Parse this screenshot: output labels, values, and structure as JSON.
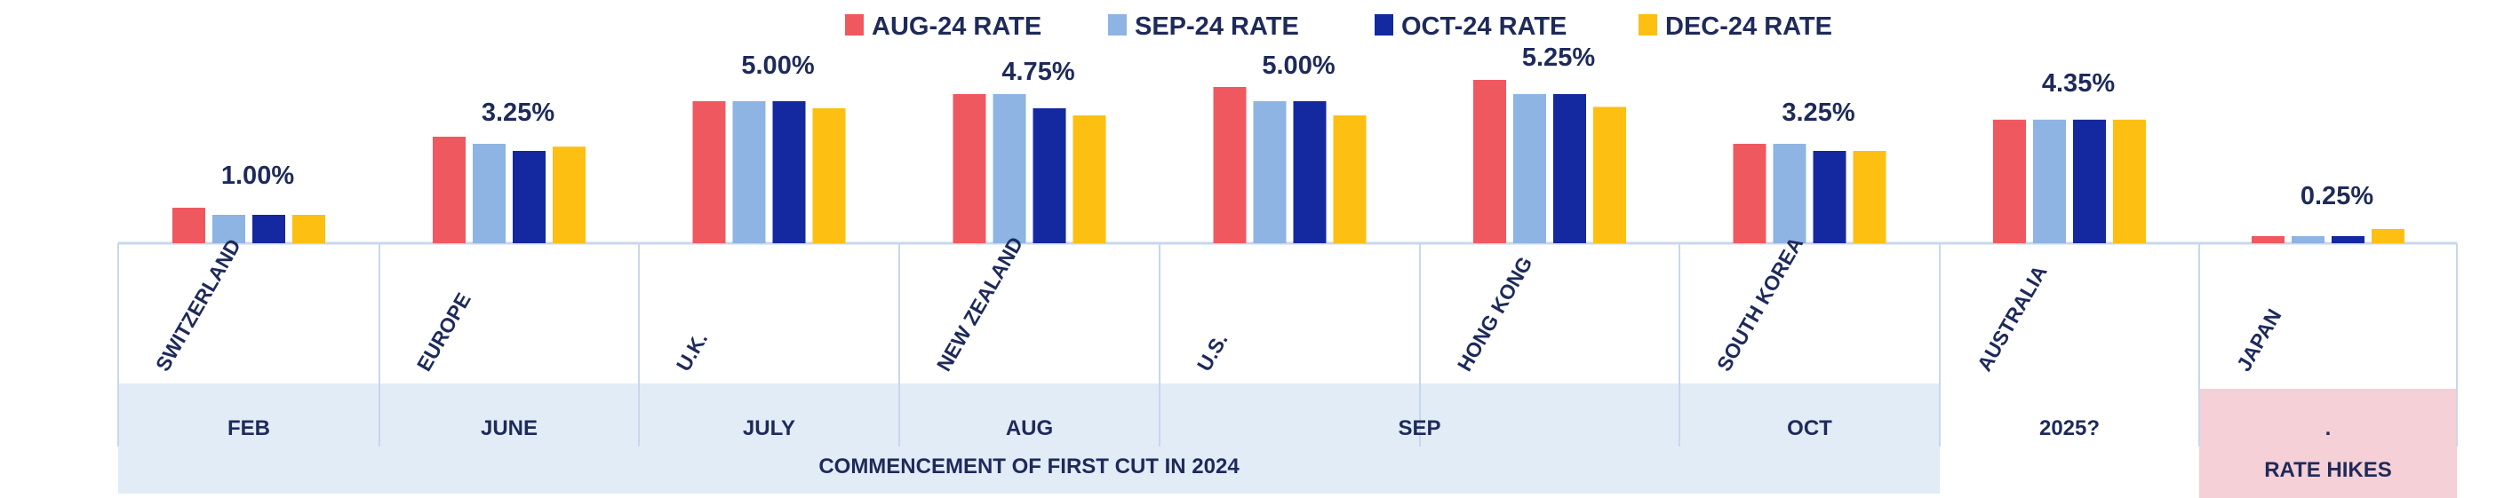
{
  "chart_data": {
    "type": "bar",
    "title": "",
    "xlabel": "",
    "ylabel": "",
    "legend_position": "top",
    "grid": false,
    "ylim": [
      0,
      6
    ],
    "categories": [
      "SWITZERLAND",
      "EUROPE",
      "U.K.",
      "NEW ZEALAND",
      "U.S.",
      "HONG KONG",
      "SOUTH KOREA",
      "AUSTRALIA",
      "JAPAN"
    ],
    "series": [
      {
        "name": "AUG-24 RATE",
        "color": "#f0585f",
        "values": [
          1.25,
          3.75,
          5.0,
          5.25,
          5.5,
          5.75,
          3.5,
          4.35,
          0.25
        ]
      },
      {
        "name": "SEP-24 RATE",
        "color": "#8db4e2",
        "values": [
          1.0,
          3.5,
          5.0,
          5.25,
          5.0,
          5.25,
          3.5,
          4.35,
          0.25
        ]
      },
      {
        "name": "OCT-24 RATE",
        "color": "#1428a0",
        "values": [
          1.0,
          3.25,
          5.0,
          4.75,
          5.0,
          5.25,
          3.25,
          4.35,
          0.25
        ]
      },
      {
        "name": "DEC-24 RATE",
        "color": "#fdbf12",
        "values": [
          1.0,
          3.4,
          4.75,
          4.5,
          4.5,
          4.8,
          3.25,
          4.35,
          0.5
        ]
      }
    ],
    "value_labels": [
      "1.00%",
      "3.25%",
      "5.00%",
      "4.75%",
      "5.00%",
      "5.25%",
      "3.25%",
      "4.35%",
      "0.25%"
    ],
    "timing_groups": [
      {
        "label": "FEB",
        "span": [
          0,
          0
        ]
      },
      {
        "label": "JUNE",
        "span": [
          1,
          1
        ]
      },
      {
        "label": "JULY",
        "span": [
          2,
          2
        ]
      },
      {
        "label": "AUG",
        "span": [
          3,
          3
        ]
      },
      {
        "label": "SEP",
        "span": [
          4,
          5
        ]
      },
      {
        "label": "OCT",
        "span": [
          6,
          6
        ]
      },
      {
        "label": "2025?",
        "span": [
          7,
          7
        ]
      },
      {
        "label": ".",
        "span": [
          8,
          8
        ]
      }
    ],
    "bands": [
      {
        "label": "COMMENCEMENT OF FIRST CUT IN 2024",
        "span": [
          0,
          6
        ],
        "color": "#e1ecf7"
      },
      {
        "label": "RATE HIKES",
        "span": [
          8,
          8
        ],
        "color": "#f5d0d6"
      }
    ]
  }
}
